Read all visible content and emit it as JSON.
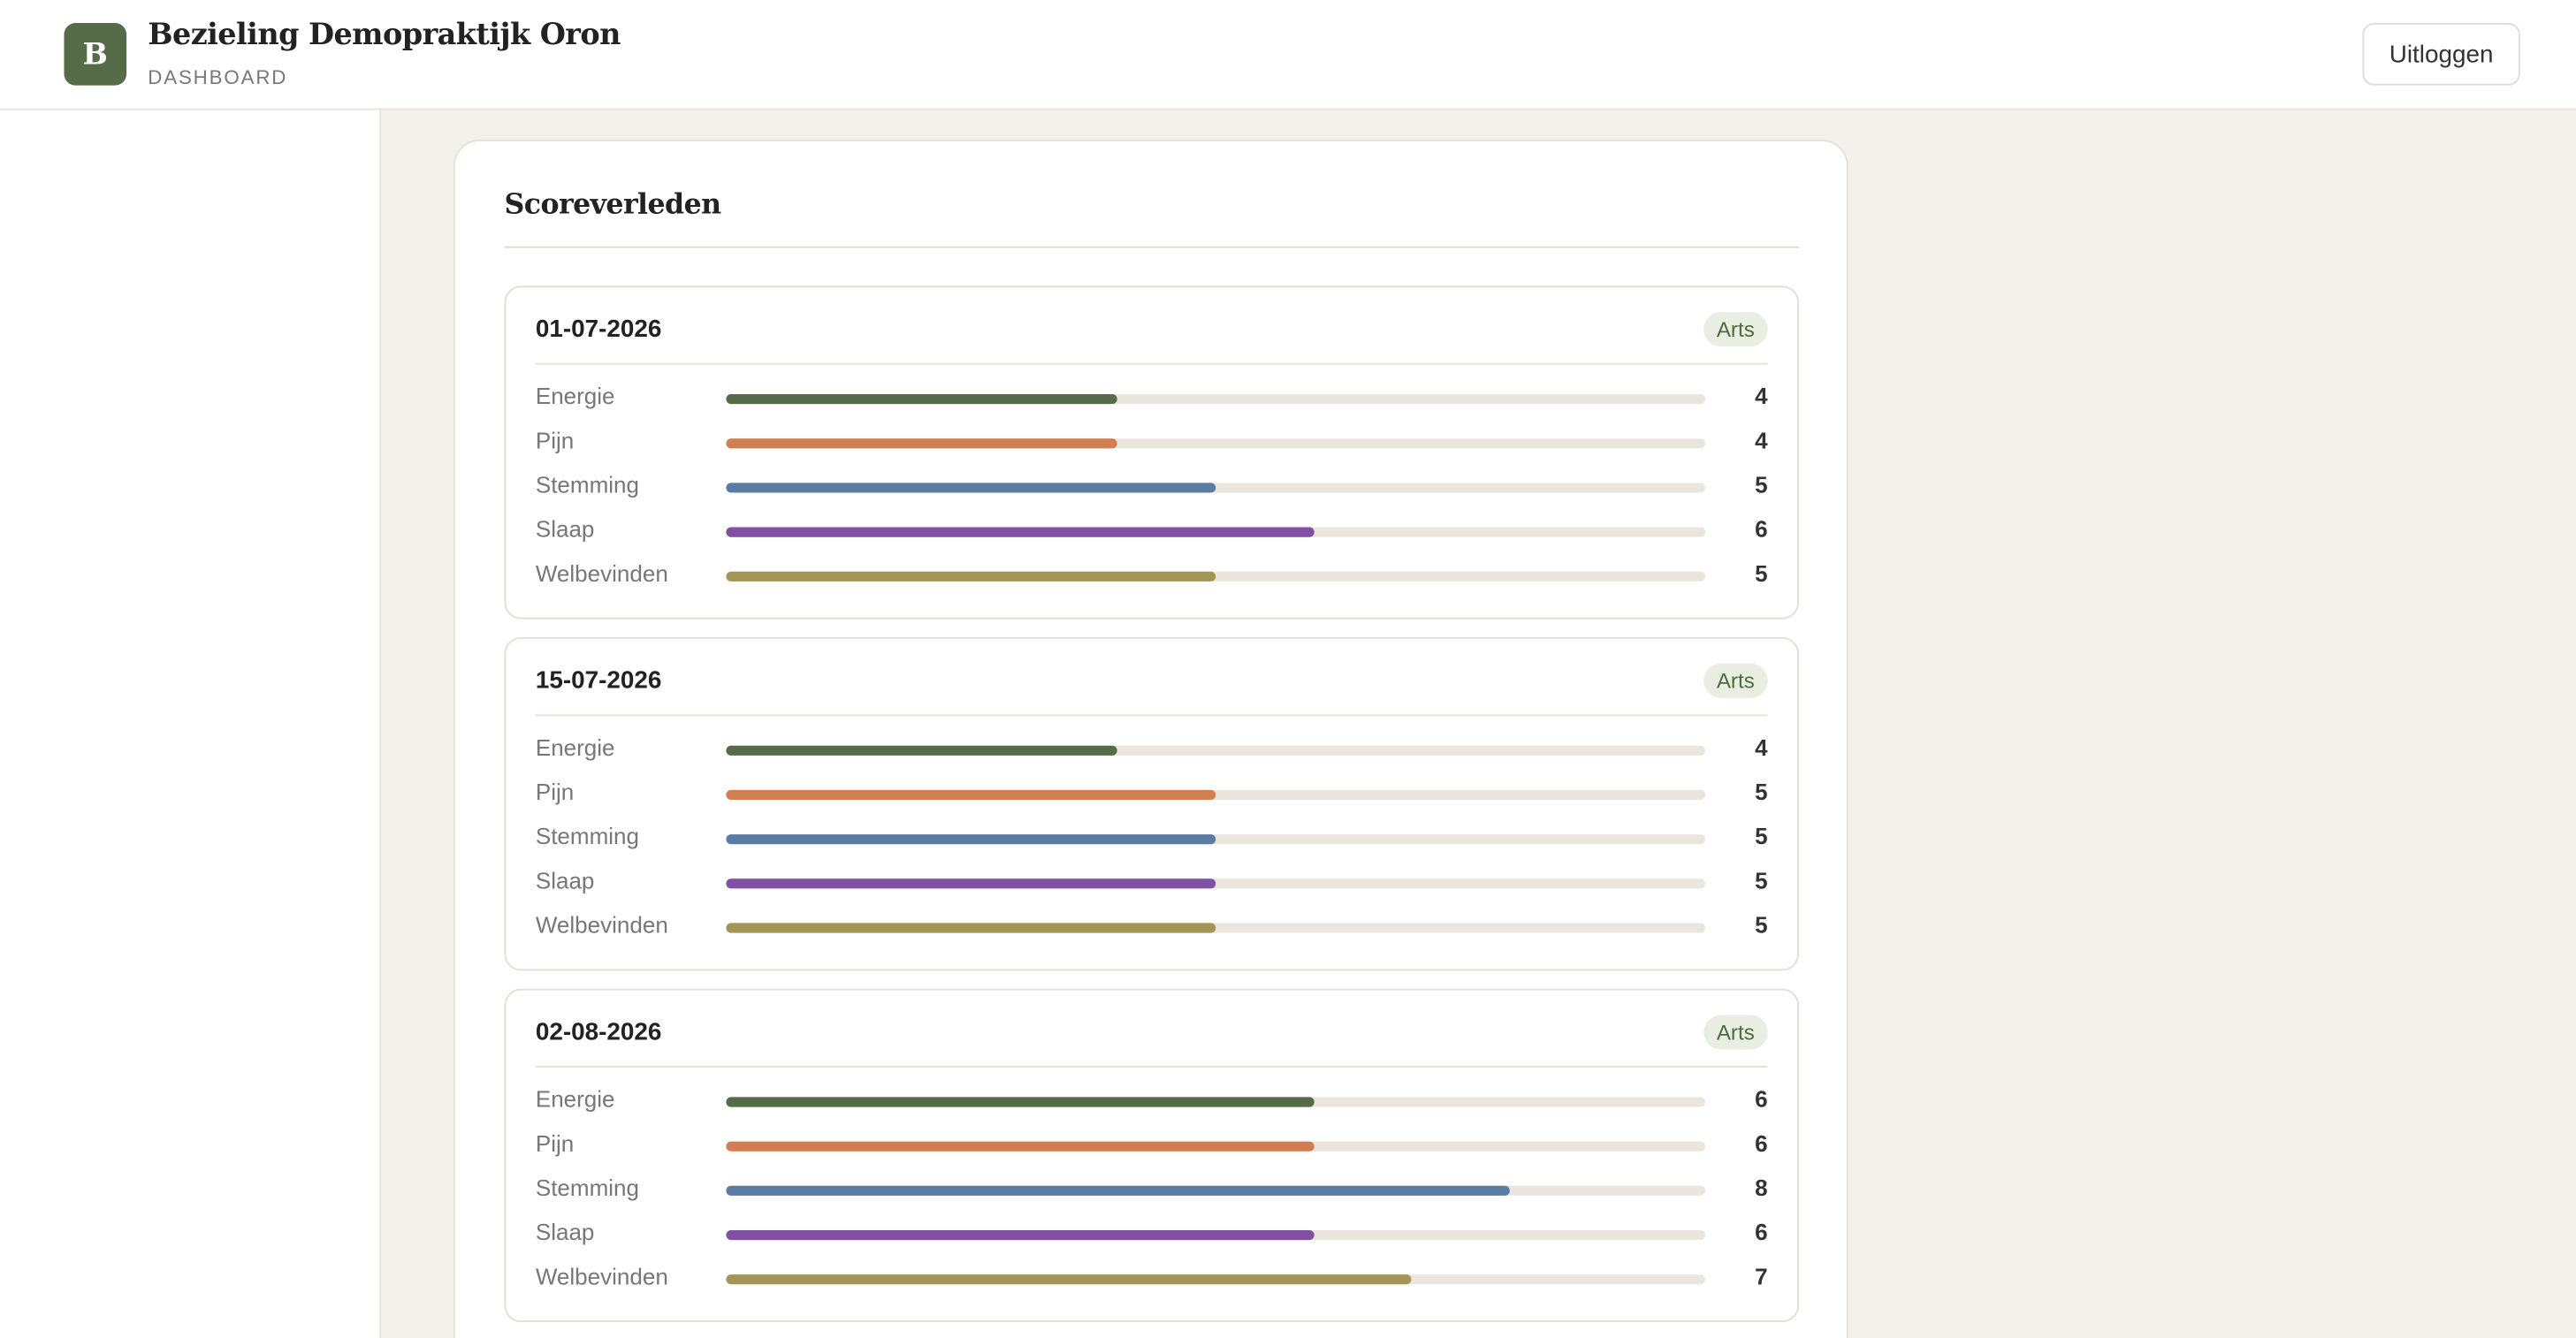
{
  "header": {
    "logo": "B",
    "title": "Bezieling Demopraktijk Oron",
    "subtitle": "DASHBOARD",
    "logout": "Uitloggen"
  },
  "history": {
    "title": "Scoreverleden",
    "xlim": [
      0,
      10
    ],
    "metrics": [
      {
        "name": "Energie",
        "color": "#566b47"
      },
      {
        "name": "Pijn",
        "color": "#d07f52"
      },
      {
        "name": "Stemming",
        "color": "#5a7ca3"
      },
      {
        "name": "Slaap",
        "color": "#8150a3"
      },
      {
        "name": "Welbevinden",
        "color": "#a39556"
      }
    ],
    "entries": [
      {
        "date": "01-07-2026",
        "badge": "Arts",
        "values": [
          4,
          4,
          5,
          6,
          5
        ]
      },
      {
        "date": "15-07-2026",
        "badge": "Arts",
        "values": [
          4,
          5,
          5,
          5,
          5
        ]
      },
      {
        "date": "02-08-2026",
        "badge": "Arts",
        "values": [
          6,
          6,
          8,
          6,
          7
        ]
      }
    ]
  }
}
